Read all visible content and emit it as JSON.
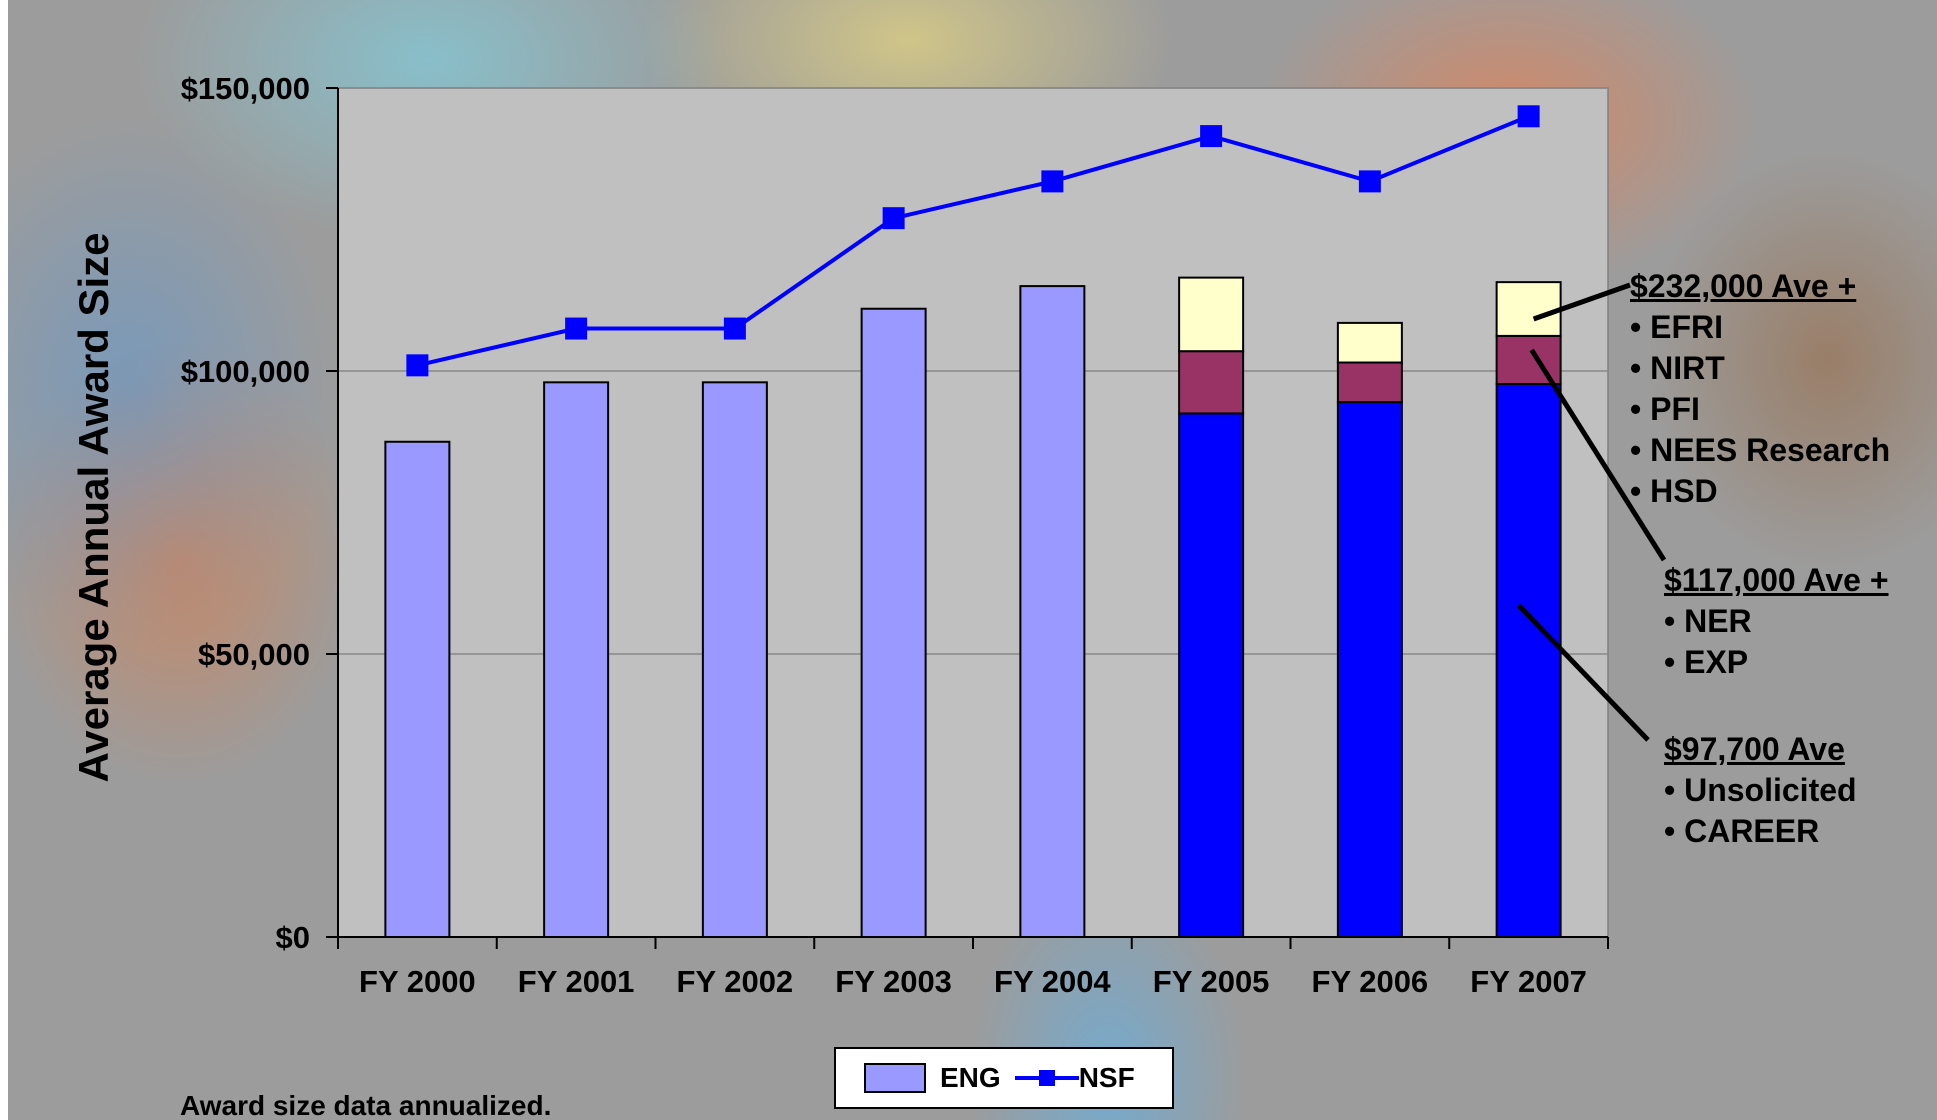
{
  "chart_data": {
    "type": "bar",
    "ylabel": "Average Annual Award Size",
    "categories": [
      "FY 2000",
      "FY 2001",
      "FY 2002",
      "FY 2003",
      "FY 2004",
      "FY 2005",
      "FY 2006",
      "FY 2007"
    ],
    "ylim": [
      0,
      150000
    ],
    "yticks": [
      "$0",
      "$50,000",
      "$100,000",
      "$150,000"
    ],
    "ytick_values": [
      0,
      50000,
      100000,
      150000
    ],
    "grid": true,
    "legend": {
      "placement": "bottom-center",
      "entries": [
        "ENG",
        "NSF"
      ]
    },
    "series": [
      {
        "name": "ENG",
        "kind": "bar",
        "color": "#9999ff",
        "values": [
          87500,
          98000,
          98000,
          111000,
          115000,
          null,
          null,
          null
        ]
      },
      {
        "kind": "stacked-bar-segment",
        "color": "#0000ff",
        "values": [
          null,
          null,
          null,
          null,
          null,
          92500,
          94500,
          97700
        ]
      },
      {
        "kind": "stacked-bar-segment",
        "color": "#993366",
        "values": [
          null,
          null,
          null,
          null,
          null,
          11000,
          7000,
          8500
        ]
      },
      {
        "kind": "stacked-bar-segment",
        "color": "#ffffcc",
        "values": [
          null,
          null,
          null,
          null,
          null,
          13000,
          7000,
          9500
        ]
      },
      {
        "name": "NSF",
        "kind": "line",
        "color": "#0000ff",
        "values": [
          101000,
          107500,
          107500,
          127000,
          133500,
          141500,
          133500,
          145000
        ]
      }
    ],
    "annotations": [
      {
        "heading": "$232,000 Ave +",
        "items": [
          "EFRI",
          "NIRT",
          "PFI",
          "NEES Research",
          "HSD"
        ]
      },
      {
        "heading": "$117,000 Ave +",
        "items": [
          "NER",
          "EXP"
        ]
      },
      {
        "heading": "$97,700 Ave",
        "items": [
          "Unsolicited",
          "CAREER"
        ]
      }
    ],
    "footnote": "Award size data annualized."
  },
  "colors": {
    "plot_background": "#c0c0c0",
    "eng_bar": "#9999ff",
    "base_segment": "#0000ff",
    "mid_segment": "#993366",
    "top_segment": "#ffffcc",
    "nsf_line": "#0000ff"
  }
}
